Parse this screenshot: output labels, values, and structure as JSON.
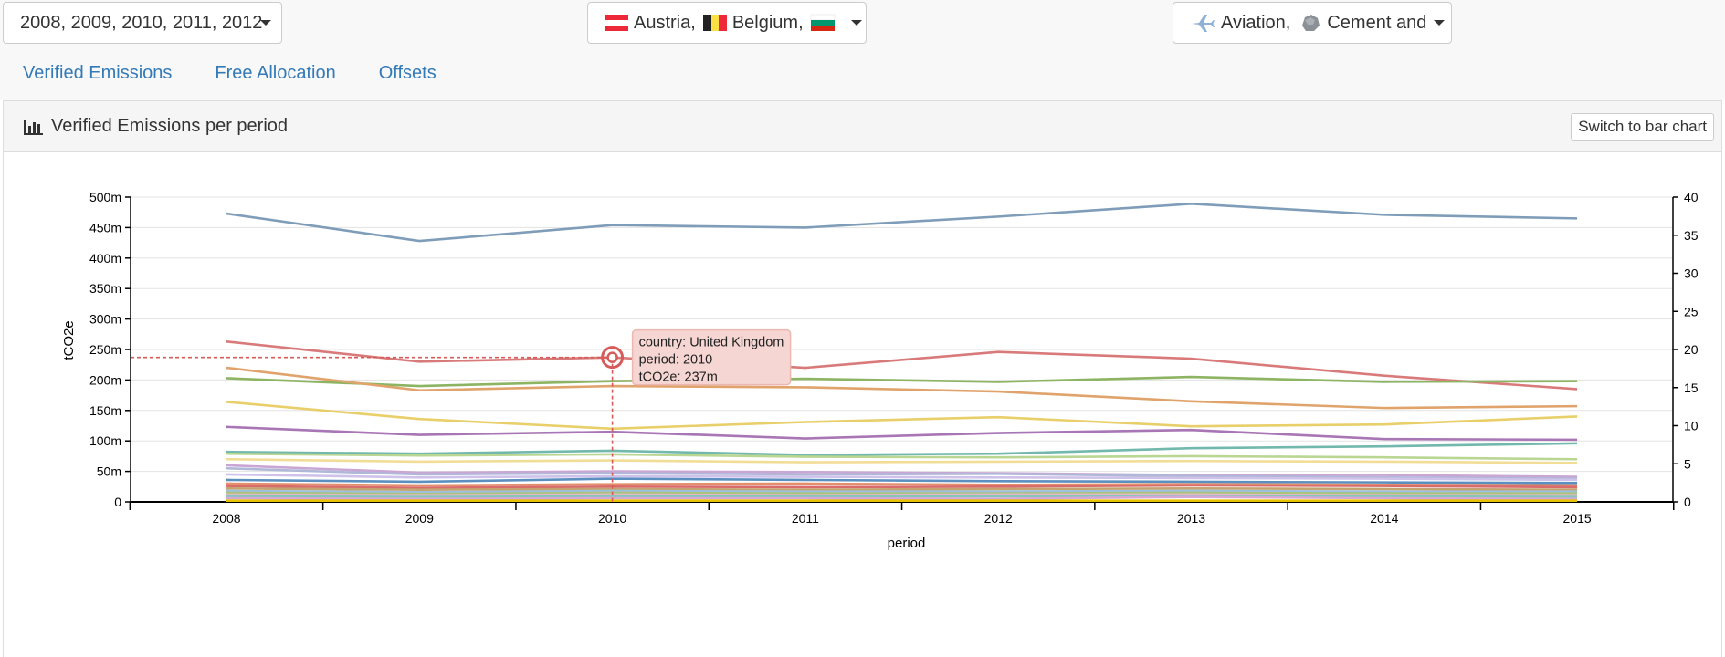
{
  "filters": {
    "years_label": "2008, 2009, 2010, 2011, 2012",
    "countries": [
      {
        "name": "Austria,",
        "flag": "austria-flag-icon"
      },
      {
        "name": "Belgium,",
        "flag": "belgium-flag-icon"
      },
      {
        "name": "",
        "flag": "bulgaria-flag-icon"
      }
    ],
    "sectors": [
      {
        "name": "Aviation,",
        "icon": "airplane-icon"
      },
      {
        "name": "Cement and",
        "icon": "cement-rock-icon"
      }
    ]
  },
  "tabs": [
    "Verified Emissions",
    "Free Allocation",
    "Offsets"
  ],
  "panel": {
    "title": "Verified Emissions per period",
    "title_icon": "bar-chart-icon",
    "switch_button": "Switch to bar chart"
  },
  "chart_data": {
    "type": "line",
    "xlabel": "period",
    "ylabel": "tCO2e",
    "x": [
      "2008",
      "2009",
      "2010",
      "2011",
      "2012",
      "2013",
      "2014",
      "2015"
    ],
    "ylim": [
      0,
      500000000
    ],
    "yticks": [
      "0",
      "50m",
      "100m",
      "150m",
      "200m",
      "250m",
      "300m",
      "350m",
      "400m",
      "450m",
      "500m"
    ],
    "y2lim": [
      0,
      40
    ],
    "y2ticks": [
      "0",
      "5",
      "10",
      "15",
      "20",
      "25",
      "30",
      "35",
      "40"
    ],
    "grid": true,
    "series": [
      {
        "color": "#7f9db9",
        "values": [
          473,
          428,
          454,
          450,
          468,
          489,
          471,
          465
        ]
      },
      {
        "color": "#d97a7a",
        "values": [
          263,
          230,
          237,
          220,
          246,
          235,
          207,
          185
        ]
      },
      {
        "color": "#8db463",
        "values": [
          203,
          190,
          198,
          202,
          197,
          205,
          197,
          198
        ]
      },
      {
        "color": "#e0a36b",
        "values": [
          220,
          183,
          190,
          188,
          181,
          165,
          154,
          157
        ]
      },
      {
        "color": "#e8cf6a",
        "values": [
          164,
          136,
          120,
          131,
          139,
          124,
          127,
          140
        ]
      },
      {
        "color": "#a875b5",
        "values": [
          123,
          110,
          115,
          104,
          113,
          118,
          103,
          102
        ]
      },
      {
        "color": "#72b8ad",
        "values": [
          82,
          79,
          84,
          77,
          79,
          88,
          91,
          96
        ]
      },
      {
        "color": "#b9d693",
        "values": [
          79,
          76,
          78,
          74,
          73,
          75,
          73,
          70
        ]
      },
      {
        "color": "#f2dd97",
        "values": [
          70,
          66,
          68,
          65,
          66,
          67,
          66,
          64
        ]
      },
      {
        "color": "#c9a6d4",
        "values": [
          60,
          48,
          50,
          49,
          47,
          44,
          44,
          41
        ]
      },
      {
        "color": "#b0b8d8",
        "values": [
          55,
          45,
          47,
          45,
          46,
          42,
          40,
          38
        ]
      },
      {
        "color": "#cfc2ea",
        "values": [
          45,
          40,
          42,
          41,
          40,
          39,
          38,
          36
        ]
      },
      {
        "color": "#5b8fbf",
        "values": [
          36,
          33,
          38,
          36,
          34,
          33,
          32,
          31
        ]
      },
      {
        "color": "#e38f6c",
        "values": [
          30,
          27,
          29,
          30,
          28,
          29,
          28,
          27
        ]
      },
      {
        "color": "#d96b6b",
        "values": [
          26,
          23,
          25,
          24,
          25,
          27,
          26,
          24
        ]
      },
      {
        "color": "#c4a36e",
        "values": [
          22,
          20,
          21,
          20,
          21,
          22,
          21,
          20
        ]
      },
      {
        "color": "#9ec0df",
        "values": [
          18,
          16,
          18,
          17,
          17,
          18,
          17,
          17
        ]
      },
      {
        "color": "#aac47c",
        "values": [
          15,
          13,
          15,
          14,
          14,
          15,
          14,
          14
        ]
      },
      {
        "color": "#e5b7c8",
        "values": [
          12,
          11,
          12,
          11,
          12,
          12,
          11,
          11
        ]
      },
      {
        "color": "#86c6b8",
        "values": [
          9,
          8,
          9,
          9,
          9,
          9,
          9,
          8
        ]
      },
      {
        "color": "#d4a9d6",
        "values": [
          6,
          5,
          6,
          6,
          5,
          8,
          6,
          5
        ]
      },
      {
        "color": "#e6c200",
        "values": [
          2,
          2,
          2,
          2,
          2,
          2,
          2,
          2
        ]
      }
    ],
    "tooltip": {
      "series_index": 1,
      "x_index": 2,
      "y_value": 237,
      "lines": [
        "country: United Kingdom",
        "period: 2010",
        "tCO2e: 237m"
      ]
    }
  }
}
